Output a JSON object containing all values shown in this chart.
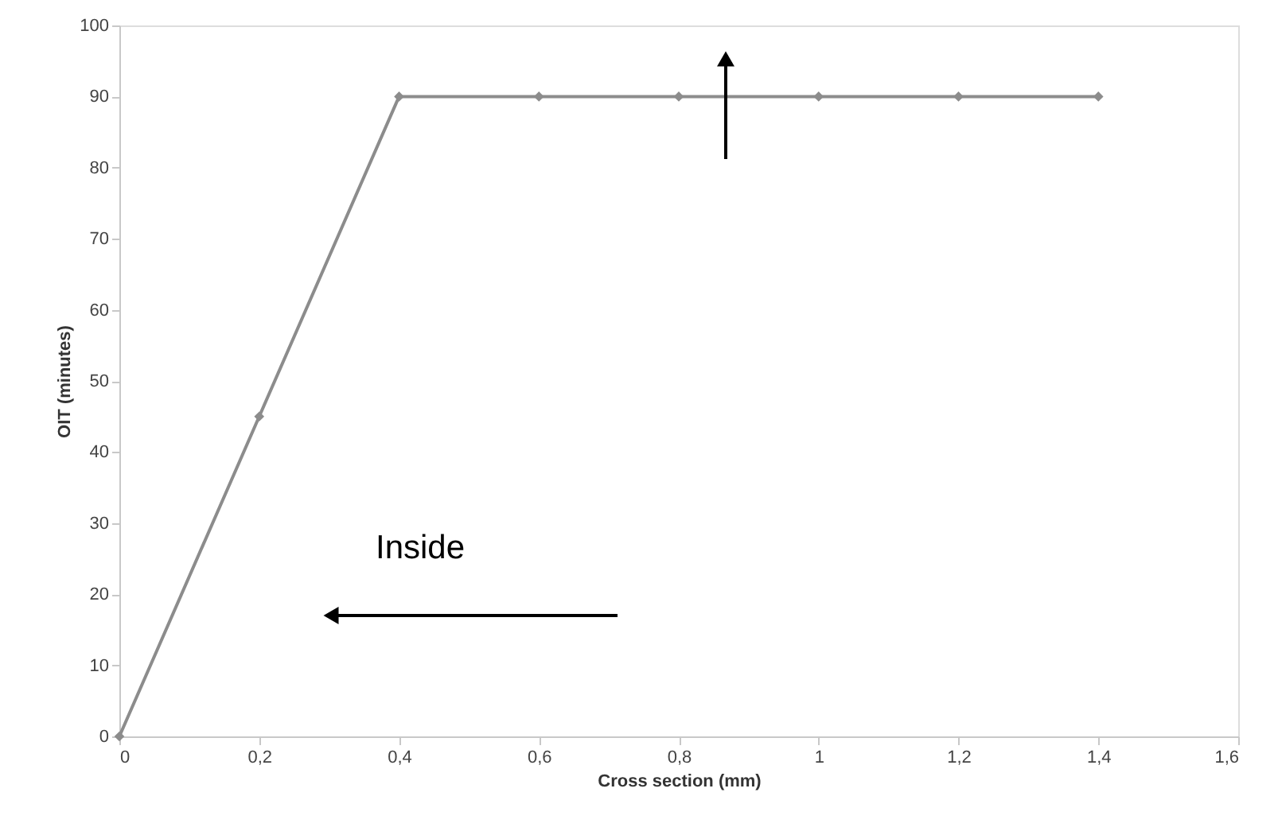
{
  "chart_data": {
    "type": "line",
    "xlabel": "Cross section (mm)",
    "ylabel": "OIT (minutes)",
    "x": [
      0,
      0.2,
      0.4,
      0.6,
      0.8,
      1.0,
      1.2,
      1.4
    ],
    "series": [
      {
        "color": "#8c8c8c",
        "values": [
          0,
          45,
          90,
          90,
          90,
          90,
          90,
          90
        ]
      }
    ],
    "xlim": [
      0,
      1.6
    ],
    "xticks": [
      0,
      {
        "value": 0.2,
        "label": "0,2"
      },
      {
        "value": 0.4,
        "label": "0,4"
      },
      {
        "value": 0.6,
        "label": "0,6"
      },
      {
        "value": 0.8,
        "label": "0,8"
      },
      1,
      {
        "value": 1.2,
        "label": "1,2"
      },
      {
        "value": 1.4,
        "label": "1,4"
      },
      {
        "value": 1.6,
        "label": "1,6"
      }
    ],
    "ylim": [
      0,
      100
    ],
    "yticks": [
      0,
      10,
      20,
      30,
      40,
      50,
      60,
      70,
      80,
      90,
      100
    ],
    "grid": false,
    "marker": "diamond",
    "line_style": "solid",
    "annotations": [
      "Inside"
    ]
  }
}
